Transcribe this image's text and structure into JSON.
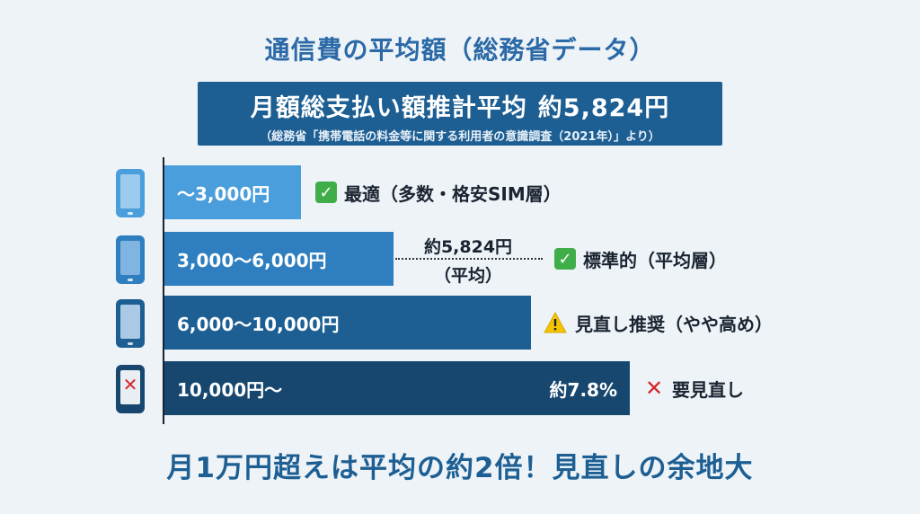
{
  "title": "通信費の平均額（総務省データ）",
  "summary": {
    "label": "月額総支払い額推計平均",
    "amount": "約5,824円",
    "source": "（総務省「携帯電話の料金等に関する利用者の意識調査（2021年）」より）"
  },
  "average_marker": {
    "line1": "約5,824円",
    "line2": "（平均）"
  },
  "footer": "月1万円超えは平均の約2倍！見直しの余地大",
  "colors": {
    "title": "#2b6aa6",
    "summary_bg": "#1d5f93",
    "bar_1": "#4a9edb",
    "bar_2": "#2f7fc0",
    "bar_3": "#1d5f93",
    "bar_4": "#17476f",
    "check": "#3fae49",
    "warning": "#f5c400",
    "cross": "#d6262b"
  },
  "chart_data": {
    "type": "bar",
    "orientation": "horizontal",
    "categories": [
      "〜3,000円",
      "3,000〜6,000円",
      "6,000〜10,000円",
      "10,000円〜"
    ],
    "values": [
      1,
      2,
      3,
      4
    ],
    "value_note": "bars widen with the price range; the only printed share is 約7.8% on the last bar",
    "bar_annotations": [
      "",
      "",
      "",
      "約7.8%"
    ],
    "labels": [
      {
        "icon": "check-icon",
        "text": "最適（多数・格安SIM層）"
      },
      {
        "icon": "check-icon",
        "text": "標準的（平均層）"
      },
      {
        "icon": "warning-icon",
        "text": "見直し推奨（やや高め）"
      },
      {
        "icon": "cross-icon",
        "text": "要見直し"
      }
    ],
    "row_icons": [
      "phone-icon",
      "phone-icon",
      "phone-icon",
      "phone-x-icon"
    ]
  }
}
